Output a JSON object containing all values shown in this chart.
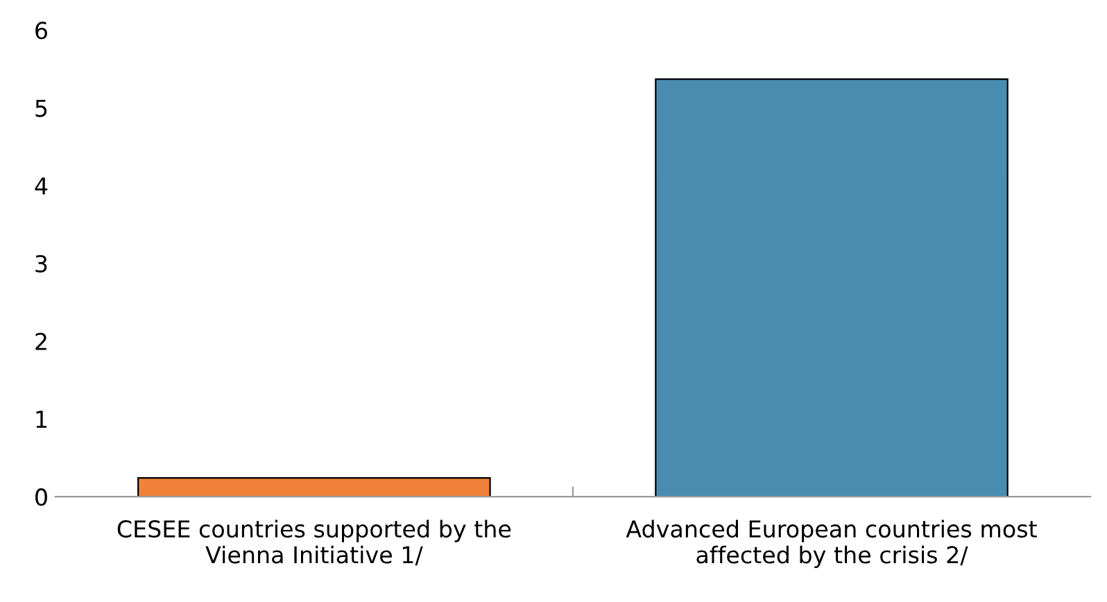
{
  "chart_data": {
    "type": "bar",
    "categories": [
      "CESEE countries supported by the\nVienna Initiative 1/",
      "Advanced European countries most\naffected by the crisis 2/"
    ],
    "values": [
      0.24,
      5.37
    ],
    "colors": [
      "#f0823a",
      "#4a8db0"
    ],
    "ylim": [
      0,
      6
    ],
    "yticks": [
      0,
      1,
      2,
      3,
      4,
      5,
      6
    ],
    "grid": false
  }
}
